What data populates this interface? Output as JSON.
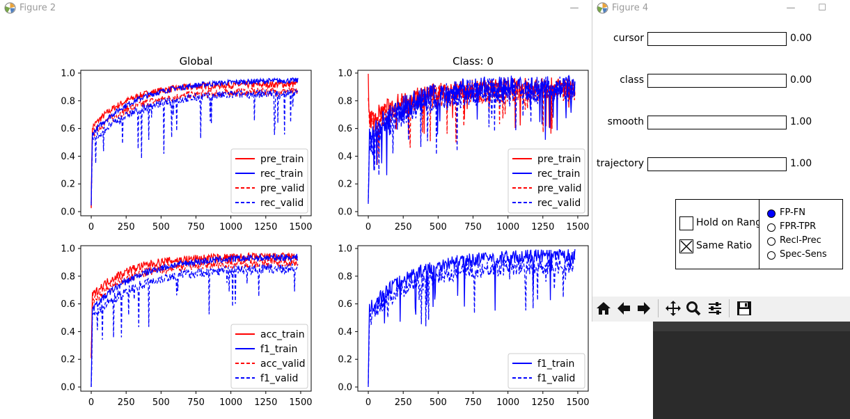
{
  "fig2": {
    "title": "Figure 2",
    "minimize": "—",
    "charts": [
      {
        "title": "Global",
        "xticks": [
          "0",
          "250",
          "500",
          "750",
          "1000",
          "1250",
          "1500"
        ],
        "yticks": [
          "0.0",
          "0.2",
          "0.4",
          "0.6",
          "0.8",
          "1.0"
        ],
        "legend": [
          {
            "label": "pre_train",
            "color": "#ff0000",
            "style": "solid"
          },
          {
            "label": "rec_train",
            "color": "#0000ff",
            "style": "solid"
          },
          {
            "label": "pre_valid",
            "color": "#ff0000",
            "style": "dashed"
          },
          {
            "label": "rec_valid",
            "color": "#0000ff",
            "style": "dashed"
          }
        ]
      },
      {
        "title": "Class: 0",
        "xticks": [
          "0",
          "250",
          "500",
          "750",
          "1000",
          "1250",
          "1500"
        ],
        "yticks": [
          "0.0",
          "0.2",
          "0.4",
          "0.6",
          "0.8",
          "1.0"
        ],
        "legend": [
          {
            "label": "pre_train",
            "color": "#ff0000",
            "style": "solid"
          },
          {
            "label": "rec_train",
            "color": "#0000ff",
            "style": "solid"
          },
          {
            "label": "pre_valid",
            "color": "#ff0000",
            "style": "dashed"
          },
          {
            "label": "rec_valid",
            "color": "#0000ff",
            "style": "dashed"
          }
        ]
      },
      {
        "title": "",
        "xticks": [
          "0",
          "250",
          "500",
          "750",
          "1000",
          "1250",
          "1500"
        ],
        "yticks": [
          "0.0",
          "0.2",
          "0.4",
          "0.6",
          "0.8",
          "1.0"
        ],
        "legend": [
          {
            "label": "acc_train",
            "color": "#ff0000",
            "style": "solid"
          },
          {
            "label": "f1_train",
            "color": "#0000ff",
            "style": "solid"
          },
          {
            "label": "acc_valid",
            "color": "#ff0000",
            "style": "dashed"
          },
          {
            "label": "f1_valid",
            "color": "#0000ff",
            "style": "dashed"
          }
        ]
      },
      {
        "title": "",
        "xticks": [
          "0",
          "250",
          "500",
          "750",
          "1000",
          "1250",
          "1500"
        ],
        "yticks": [
          "0.0",
          "0.2",
          "0.4",
          "0.6",
          "0.8",
          "1.0"
        ],
        "legend": [
          {
            "label": "f1_train",
            "color": "#0000ff",
            "style": "solid"
          },
          {
            "label": "f1_valid",
            "color": "#0000ff",
            "style": "dashed"
          }
        ]
      }
    ]
  },
  "fig4": {
    "title": "Figure 4",
    "minimize": "—",
    "maximize": "☐",
    "sliders": [
      {
        "label": "cursor",
        "value": "0.00"
      },
      {
        "label": "class",
        "value": "0.00"
      },
      {
        "label": "smooth",
        "value": "1.00"
      },
      {
        "label": "trajectory",
        "value": "1.00"
      }
    ],
    "checkboxes": [
      {
        "label": "Hold on Range",
        "checked": false
      },
      {
        "label": "Same Ratio",
        "checked": true
      }
    ],
    "radios": [
      {
        "label": "FP-FN",
        "selected": true
      },
      {
        "label": "FPR-TPR",
        "selected": false
      },
      {
        "label": "Recl-Prec",
        "selected": false
      },
      {
        "label": "Spec-Sens",
        "selected": false
      }
    ],
    "toolbar": [
      "home-icon",
      "back-icon",
      "forward-icon",
      "pan-icon",
      "zoom-icon",
      "configure-icon",
      "save-icon"
    ]
  }
}
